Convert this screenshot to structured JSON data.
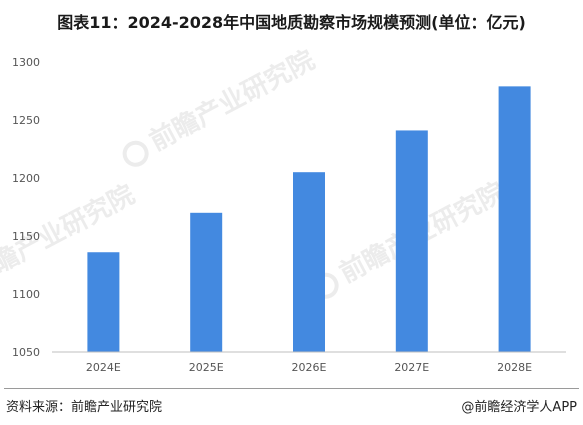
{
  "page": {
    "title": "图表11：2024-2028年中国地质勘察市场规模预测(单位：亿元)",
    "source": "资料来源：前瞻产业研究院",
    "credit": "@前瞻经济学人APP",
    "watermark_text": "前瞻产业研究院"
  },
  "chart_data": {
    "type": "bar",
    "title": "图表11：2024-2028年中国地质勘察市场规模预测(单位：亿元)",
    "xlabel": "",
    "ylabel": "",
    "categories": [
      "2024E",
      "2025E",
      "2026E",
      "2027E",
      "2028E"
    ],
    "values": [
      1136,
      1170,
      1205,
      1241,
      1279
    ],
    "ylim": [
      1050,
      1300
    ],
    "yticks": [
      1050,
      1100,
      1150,
      1200,
      1250,
      1300
    ],
    "grid": false,
    "legend": "none",
    "colors": {
      "bar": "#4389e0",
      "axis": "#bfbfbf",
      "tick_text": "#555555"
    }
  }
}
